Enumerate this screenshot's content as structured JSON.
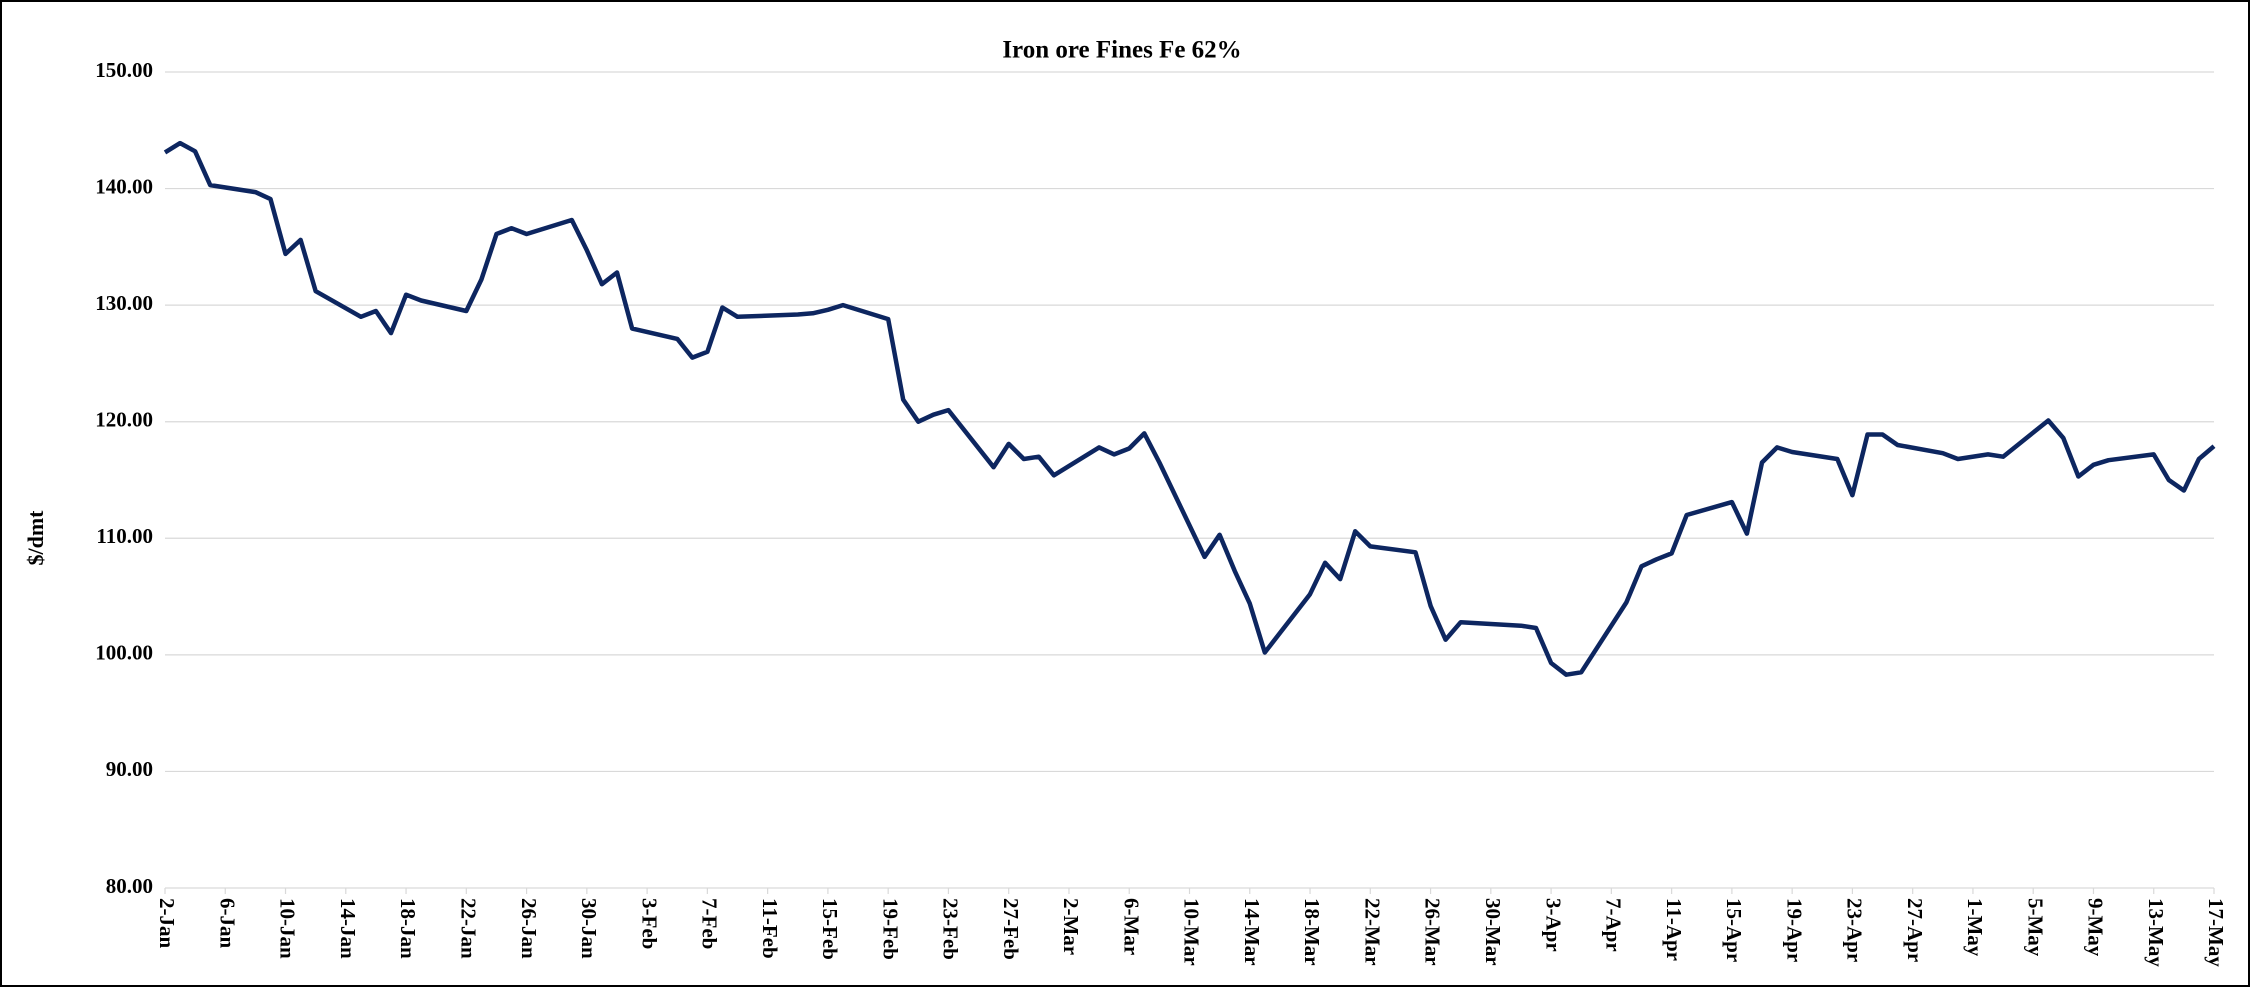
{
  "chart_data": {
    "type": "line",
    "title": "Iron ore Fines Fe 62%",
    "y_label": "$/dmt",
    "x": [
      "2-Jan",
      "3-Jan",
      "4-Jan",
      "5-Jan",
      "8-Jan",
      "9-Jan",
      "10-Jan",
      "11-Jan",
      "12-Jan",
      "15-Jan",
      "16-Jan",
      "17-Jan",
      "18-Jan",
      "19-Jan",
      "22-Jan",
      "23-Jan",
      "24-Jan",
      "25-Jan",
      "26-Jan",
      "29-Jan",
      "30-Jan",
      "31-Jan",
      "1-Feb",
      "2-Feb",
      "5-Feb",
      "6-Feb",
      "7-Feb",
      "8-Feb",
      "9-Feb",
      "13-Feb",
      "14-Feb",
      "15-Feb",
      "16-Feb",
      "19-Feb",
      "20-Feb",
      "21-Feb",
      "22-Feb",
      "23-Feb",
      "26-Feb",
      "27-Feb",
      "28-Feb",
      "29-Feb",
      "1-Mar",
      "4-Mar",
      "5-Mar",
      "6-Mar",
      "7-Mar",
      "8-Mar",
      "11-Mar",
      "12-Mar",
      "13-Mar",
      "14-Mar",
      "15-Mar",
      "18-Mar",
      "19-Mar",
      "20-Mar",
      "21-Mar",
      "22-Mar",
      "25-Mar",
      "26-Mar",
      "27-Mar",
      "28-Mar",
      "1-Apr",
      "2-Apr",
      "3-Apr",
      "4-Apr",
      "5-Apr",
      "8-Apr",
      "9-Apr",
      "10-Apr",
      "11-Apr",
      "12-Apr",
      "15-Apr",
      "16-Apr",
      "17-Apr",
      "18-Apr",
      "19-Apr",
      "22-Apr",
      "23-Apr",
      "24-Apr",
      "25-Apr",
      "26-Apr",
      "29-Apr",
      "30-Apr",
      "2-May",
      "3-May",
      "6-May",
      "7-May",
      "8-May",
      "9-May",
      "10-May",
      "13-May",
      "14-May",
      "15-May",
      "16-May",
      "17-May"
    ],
    "series": [
      {
        "name": "Iron ore Fines Fe 62%",
        "color": "#0d2660",
        "values": [
          143.1,
          143.9,
          143.2,
          140.3,
          139.7,
          139.1,
          134.4,
          135.6,
          131.2,
          129.0,
          129.5,
          127.6,
          130.9,
          130.4,
          129.5,
          132.2,
          136.1,
          136.6,
          136.1,
          137.3,
          134.7,
          131.8,
          132.8,
          128.0,
          127.1,
          125.5,
          126.0,
          129.8,
          129.0,
          129.2,
          129.3,
          129.6,
          130.0,
          128.8,
          121.9,
          120.0,
          120.6,
          121.0,
          116.1,
          118.1,
          116.8,
          117.0,
          115.4,
          117.8,
          117.2,
          117.7,
          119.0,
          116.5,
          108.4,
          110.3,
          107.2,
          104.4,
          100.2,
          105.2,
          107.9,
          106.5,
          110.6,
          109.3,
          108.8,
          104.2,
          101.3,
          102.8,
          102.5,
          102.3,
          99.3,
          98.3,
          98.5,
          104.5,
          107.6,
          108.2,
          108.7,
          112.0,
          113.1,
          110.4,
          116.5,
          117.8,
          117.4,
          116.8,
          113.7,
          118.9,
          118.9,
          118.0,
          117.3,
          116.8,
          117.2,
          117.0,
          120.1,
          118.6,
          115.3,
          116.3,
          116.7,
          117.2,
          115.0,
          114.1,
          116.8,
          117.9
        ]
      }
    ],
    "xlim": [
      "2-Jan",
      "17-May"
    ],
    "xticks": [
      "2-Jan",
      "6-Jan",
      "10-Jan",
      "14-Jan",
      "18-Jan",
      "22-Jan",
      "26-Jan",
      "30-Jan",
      "3-Feb",
      "7-Feb",
      "11-Feb",
      "15-Feb",
      "19-Feb",
      "23-Feb",
      "27-Feb",
      "2-Mar",
      "6-Mar",
      "10-Mar",
      "14-Mar",
      "18-Mar",
      "22-Mar",
      "26-Mar",
      "30-Mar",
      "3-Apr",
      "7-Apr",
      "11-Apr",
      "15-Apr",
      "19-Apr",
      "23-Apr",
      "27-Apr",
      "1-May",
      "5-May",
      "9-May",
      "13-May",
      "17-May"
    ],
    "ylim": [
      80,
      150
    ],
    "yticks": [
      {
        "value": 80,
        "label": "80.00"
      },
      {
        "value": 90,
        "label": "90.00"
      },
      {
        "value": 100,
        "label": "100.00"
      },
      {
        "value": 110,
        "label": "110.00"
      },
      {
        "value": 120,
        "label": "120.00"
      },
      {
        "value": 130,
        "label": "130.00"
      },
      {
        "value": 140,
        "label": "140.00"
      },
      {
        "value": 150,
        "label": "150.00"
      }
    ],
    "grid": true
  }
}
